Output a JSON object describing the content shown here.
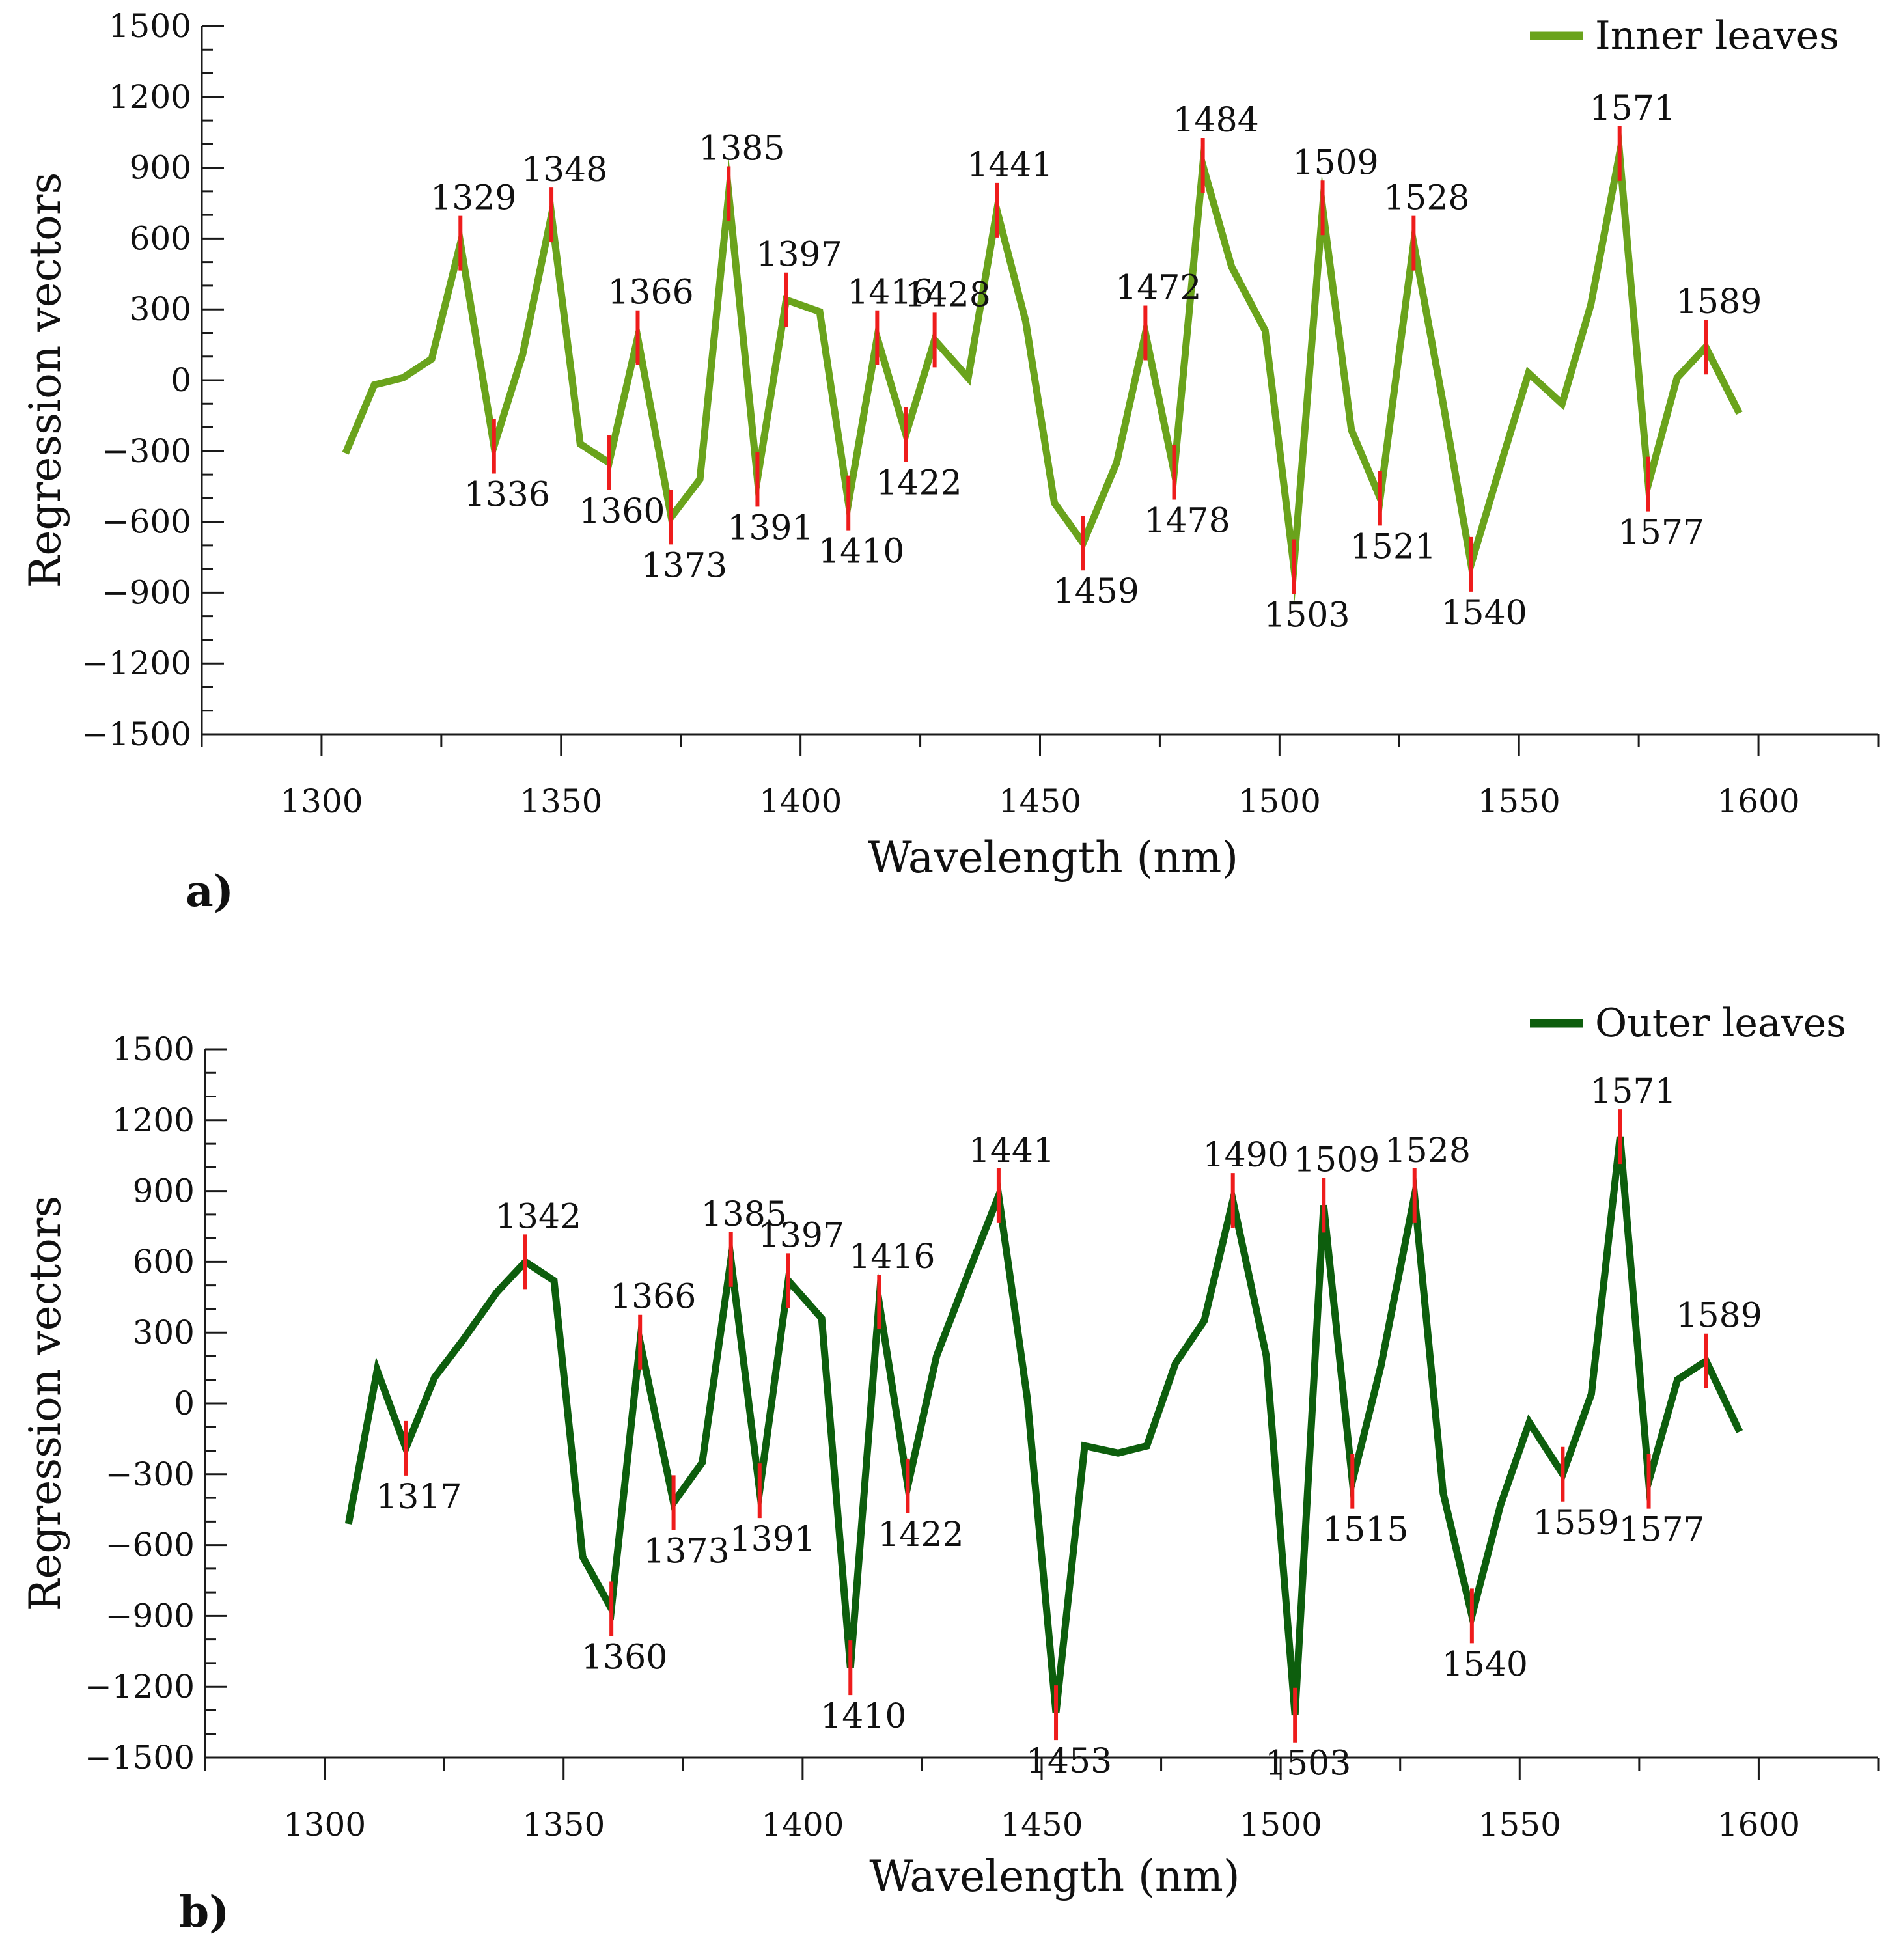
{
  "colors": {
    "inner_series": "#6aa31c",
    "outer_series": "#0d5e0d",
    "marker": "#ee1c1c",
    "axis": "#1a1a1a"
  },
  "chart_data": [
    {
      "type": "line",
      "panel_label": "a)",
      "xlabel": "Wavelength (nm)",
      "ylabel": "Regression vectors",
      "xlim": [
        1275,
        1625
      ],
      "ylim": [
        -1500,
        1500
      ],
      "xticks": [
        1300,
        1350,
        1400,
        1450,
        1500,
        1550,
        1600
      ],
      "yticks": [
        1500,
        1200,
        900,
        600,
        300,
        0,
        -300,
        -600,
        -900,
        -1200,
        -1500
      ],
      "ytick_labels": [
        "1500",
        "1200",
        "900",
        "600",
        "300",
        "0",
        "−300",
        "−600",
        "−900",
        "−1200",
        "−1500"
      ],
      "legend": {
        "label": "Inner leaves",
        "position": "top-right"
      },
      "series": [
        {
          "name": "Inner leaves",
          "x": [
            1305,
            1311,
            1317,
            1323,
            1329,
            1336,
            1342,
            1348,
            1354,
            1360,
            1366,
            1373,
            1379,
            1385,
            1391,
            1397,
            1404,
            1410,
            1416,
            1422,
            1428,
            1435,
            1441,
            1447,
            1453,
            1459,
            1466,
            1472,
            1478,
            1484,
            1490,
            1497,
            1503,
            1509,
            1515,
            1521,
            1528,
            1534,
            1540,
            1546,
            1552,
            1559,
            1565,
            1571,
            1577,
            1583,
            1589,
            1596
          ],
          "y": [
            -310,
            -20,
            10,
            90,
            580,
            -280,
            110,
            700,
            -270,
            -350,
            180,
            -580,
            -420,
            790,
            -420,
            340,
            290,
            -520,
            180,
            -230,
            170,
            10,
            720,
            250,
            -520,
            -690,
            -350,
            200,
            -390,
            910,
            480,
            210,
            -790,
            730,
            -210,
            -500,
            580,
            -80,
            -780,
            -370,
            30,
            -100,
            320,
            960,
            -440,
            10,
            140,
            -140
          ]
        }
      ],
      "annotations": [
        {
          "x": 1329,
          "y": 580,
          "label": "1329",
          "pos": "above"
        },
        {
          "x": 1336,
          "y": -280,
          "label": "1336",
          "pos": "below"
        },
        {
          "x": 1348,
          "y": 700,
          "label": "1348",
          "pos": "above"
        },
        {
          "x": 1360,
          "y": -350,
          "label": "1360",
          "pos": "below"
        },
        {
          "x": 1366,
          "y": 180,
          "label": "1366",
          "pos": "above"
        },
        {
          "x": 1373,
          "y": -580,
          "label": "1373",
          "pos": "below"
        },
        {
          "x": 1385,
          "y": 790,
          "label": "1385",
          "pos": "above"
        },
        {
          "x": 1391,
          "y": -420,
          "label": "1391",
          "pos": "below"
        },
        {
          "x": 1397,
          "y": 340,
          "label": "1397",
          "pos": "above"
        },
        {
          "x": 1410,
          "y": -520,
          "label": "1410",
          "pos": "below"
        },
        {
          "x": 1416,
          "y": 180,
          "label": "1416",
          "pos": "above"
        },
        {
          "x": 1422,
          "y": -230,
          "label": "1422",
          "pos": "below"
        },
        {
          "x": 1428,
          "y": 170,
          "label": "1428",
          "pos": "above"
        },
        {
          "x": 1441,
          "y": 720,
          "label": "1441",
          "pos": "above"
        },
        {
          "x": 1459,
          "y": -690,
          "label": "1459",
          "pos": "below"
        },
        {
          "x": 1472,
          "y": 200,
          "label": "1472",
          "pos": "above"
        },
        {
          "x": 1478,
          "y": -390,
          "label": "1478",
          "pos": "below"
        },
        {
          "x": 1484,
          "y": 910,
          "label": "1484",
          "pos": "above"
        },
        {
          "x": 1503,
          "y": -790,
          "label": "1503",
          "pos": "below"
        },
        {
          "x": 1509,
          "y": 730,
          "label": "1509",
          "pos": "above"
        },
        {
          "x": 1521,
          "y": -500,
          "label": "1521",
          "pos": "below"
        },
        {
          "x": 1528,
          "y": 580,
          "label": "1528",
          "pos": "above"
        },
        {
          "x": 1540,
          "y": -780,
          "label": "1540",
          "pos": "below"
        },
        {
          "x": 1571,
          "y": 960,
          "label": "1571",
          "pos": "above"
        },
        {
          "x": 1577,
          "y": -440,
          "label": "1577",
          "pos": "below"
        },
        {
          "x": 1589,
          "y": 140,
          "label": "1589",
          "pos": "above"
        }
      ]
    },
    {
      "type": "line",
      "panel_label": "b)",
      "xlabel": "Wavelength (nm)",
      "ylabel": "Regression vectors",
      "xlim": [
        1275,
        1625
      ],
      "ylim": [
        -1500,
        1500
      ],
      "xticks": [
        1300,
        1350,
        1400,
        1450,
        1500,
        1550,
        1600
      ],
      "yticks": [
        1500,
        1200,
        900,
        600,
        300,
        0,
        -300,
        -600,
        -900,
        -1200,
        -1500
      ],
      "ytick_labels": [
        "1500",
        "1200",
        "900",
        "600",
        "300",
        "0",
        "−300",
        "−600",
        "−900",
        "−1200",
        "−1500"
      ],
      "legend": {
        "label": "Outer leaves",
        "position": "top-right"
      },
      "series": [
        {
          "name": "Outer leaves",
          "x": [
            1305,
            1311,
            1317,
            1323,
            1329,
            1336,
            1342,
            1348,
            1354,
            1360,
            1366,
            1373,
            1379,
            1385,
            1391,
            1397,
            1404,
            1410,
            1416,
            1422,
            1428,
            1435,
            1441,
            1447,
            1453,
            1459,
            1466,
            1472,
            1478,
            1484,
            1490,
            1497,
            1503,
            1509,
            1515,
            1521,
            1528,
            1534,
            1540,
            1546,
            1552,
            1559,
            1565,
            1571,
            1577,
            1583,
            1589,
            1596
          ],
          "y": [
            -510,
            140,
            -190,
            110,
            270,
            470,
            600,
            520,
            -650,
            -870,
            260,
            -420,
            -250,
            610,
            -370,
            520,
            360,
            -1120,
            430,
            -350,
            200,
            570,
            880,
            20,
            -1310,
            -180,
            -210,
            -180,
            170,
            350,
            860,
            200,
            -1320,
            840,
            -330,
            160,
            880,
            -380,
            -900,
            -430,
            -80,
            -300,
            40,
            1130,
            -330,
            100,
            180,
            -120
          ]
        }
      ],
      "annotations": [
        {
          "x": 1317,
          "y": -190,
          "label": "1317",
          "pos": "below"
        },
        {
          "x": 1342,
          "y": 600,
          "label": "1342",
          "pos": "above"
        },
        {
          "x": 1360,
          "y": -870,
          "label": "1360",
          "pos": "below"
        },
        {
          "x": 1366,
          "y": 260,
          "label": "1366",
          "pos": "above"
        },
        {
          "x": 1373,
          "y": -420,
          "label": "1373",
          "pos": "below"
        },
        {
          "x": 1385,
          "y": 610,
          "label": "1385",
          "pos": "above"
        },
        {
          "x": 1391,
          "y": -370,
          "label": "1391",
          "pos": "below"
        },
        {
          "x": 1397,
          "y": 520,
          "label": "1397",
          "pos": "above"
        },
        {
          "x": 1410,
          "y": -1120,
          "label": "1410",
          "pos": "below"
        },
        {
          "x": 1416,
          "y": 430,
          "label": "1416",
          "pos": "above"
        },
        {
          "x": 1422,
          "y": -350,
          "label": "1422",
          "pos": "below"
        },
        {
          "x": 1441,
          "y": 880,
          "label": "1441",
          "pos": "above"
        },
        {
          "x": 1453,
          "y": -1310,
          "label": "1453",
          "pos": "below"
        },
        {
          "x": 1490,
          "y": 860,
          "label": "1490",
          "pos": "above"
        },
        {
          "x": 1503,
          "y": -1320,
          "label": "1503",
          "pos": "below"
        },
        {
          "x": 1509,
          "y": 840,
          "label": "1509",
          "pos": "above"
        },
        {
          "x": 1515,
          "y": -330,
          "label": "1515",
          "pos": "below"
        },
        {
          "x": 1528,
          "y": 880,
          "label": "1528",
          "pos": "above"
        },
        {
          "x": 1540,
          "y": -900,
          "label": "1540",
          "pos": "below"
        },
        {
          "x": 1559,
          "y": -300,
          "label": "1559",
          "pos": "below"
        },
        {
          "x": 1571,
          "y": 1130,
          "label": "1571",
          "pos": "above"
        },
        {
          "x": 1577,
          "y": -330,
          "label": "1577",
          "pos": "below"
        },
        {
          "x": 1589,
          "y": 180,
          "label": "1589",
          "pos": "above"
        }
      ]
    }
  ]
}
